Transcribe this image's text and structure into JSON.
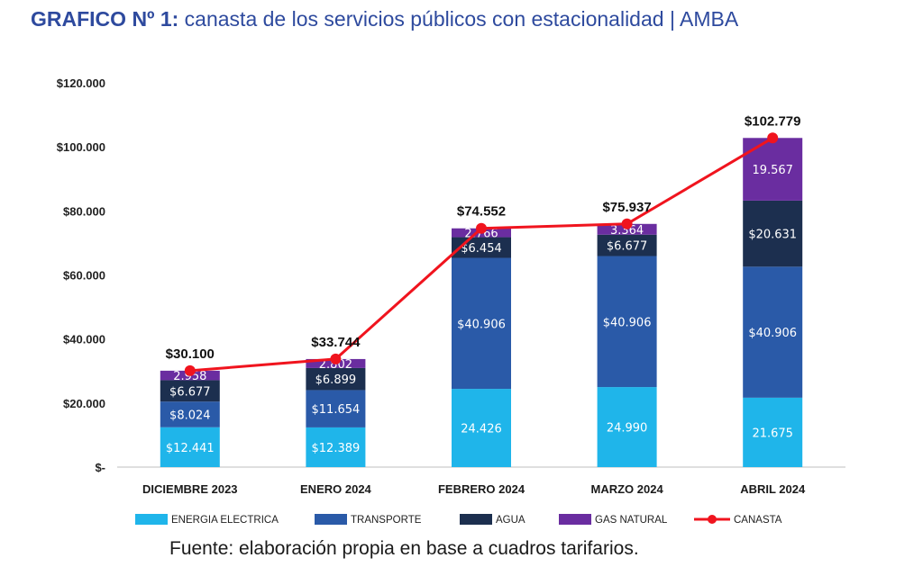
{
  "title": {
    "lead": "GRAFICO Nº 1:",
    "rest": " canasta de los servicios públicos con estacionalidad | AMBA"
  },
  "source": "Fuente: elaboración propia en base a cuadros tarifarios.",
  "chart_data": {
    "type": "bar",
    "stacked": true,
    "categories": [
      "DICIEMBRE 2023",
      "ENERO 2024",
      "FEBRERO 2024",
      "MARZO 2024",
      "ABRIL 2024"
    ],
    "ylim": [
      0,
      120000
    ],
    "yticks": [
      0,
      20000,
      40000,
      60000,
      80000,
      100000,
      120000
    ],
    "ytick_labels": [
      "$-",
      "$20.000",
      "$40.000",
      "$60.000",
      "$80.000",
      "$100.000",
      "$120.000"
    ],
    "series": [
      {
        "name": "ENERGIA ELECTRICA",
        "color": "#1fb5ea",
        "values": [
          12441,
          12389,
          24426,
          24990,
          21675
        ],
        "labels": [
          "$12.441",
          "$12.389",
          "24.426",
          "24.990",
          "21.675"
        ]
      },
      {
        "name": "TRANSPORTE",
        "color": "#2a5aa8",
        "values": [
          8024,
          11654,
          40906,
          40906,
          40906
        ],
        "labels": [
          "$8.024",
          "$11.654",
          "$40.906",
          "$40.906",
          "$40.906"
        ]
      },
      {
        "name": "AGUA",
        "color": "#1c2f4f",
        "values": [
          6677,
          6899,
          6454,
          6677,
          20631
        ],
        "labels": [
          "$6.677",
          "$6.899",
          "$6.454",
          "$6.677",
          "$20.631"
        ]
      },
      {
        "name": "GAS NATURAL",
        "color": "#6a2da0",
        "values": [
          2958,
          2802,
          2766,
          3364,
          19567
        ],
        "labels": [
          "2.958",
          "2.802",
          "2.766",
          "3.364",
          "19.567"
        ]
      }
    ],
    "line": {
      "name": "CANASTA",
      "color": "#f0141e",
      "values": [
        30100,
        33744,
        74552,
        75937,
        102779
      ],
      "labels": [
        "$30.100",
        "$33.744",
        "$74.552",
        "$75.937",
        "$102.779"
      ]
    },
    "legend_position": "bottom",
    "grid": false
  }
}
